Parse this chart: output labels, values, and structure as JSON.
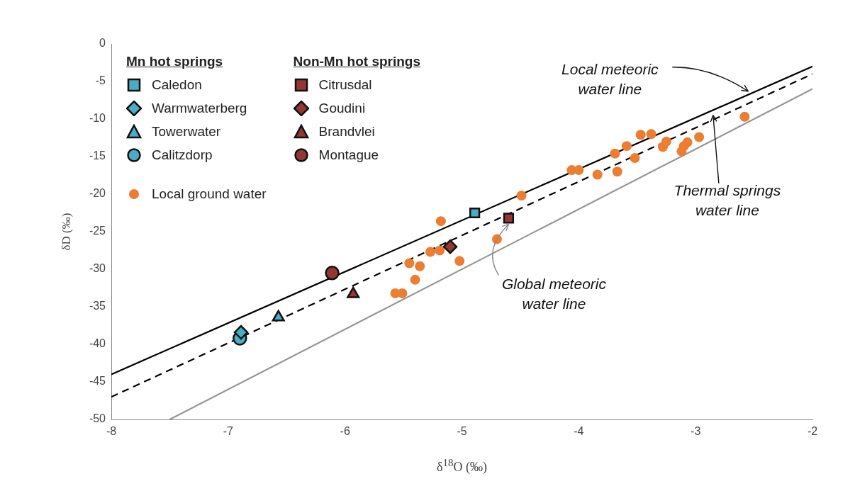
{
  "chart_data": {
    "type": "scatter",
    "xlabel": "δ$^{18}$O (‰)",
    "ylabel": "δD (‰)",
    "xlim": [
      -8,
      -2
    ],
    "xticks": [
      -8,
      -7,
      -6,
      -5,
      -4,
      -3,
      -2
    ],
    "ylim": [
      -50,
      0
    ],
    "yticks": [
      -50,
      -45,
      -40,
      -35,
      -30,
      -25,
      -20,
      -15,
      -10,
      -5,
      0
    ],
    "grid": false,
    "legend": "top left",
    "series": [
      {
        "name": "Caledon",
        "color": "#4bacc6",
        "marker": "square",
        "x": [
          -4.89
        ],
        "values": [
          -22.5
        ]
      },
      {
        "name": "Warmwaterberg",
        "color": "#4bacc6",
        "marker": "diamond",
        "x": [
          -6.89
        ],
        "values": [
          -38.4
        ]
      },
      {
        "name": "Towerwater",
        "color": "#4bacc6",
        "marker": "triangle",
        "x": [
          -6.57
        ],
        "values": [
          -36.4
        ]
      },
      {
        "name": "Calitzdorp",
        "color": "#4bacc6",
        "marker": "circle",
        "x": [
          -6.9
        ],
        "values": [
          -39.2
        ]
      },
      {
        "name": "Citrusdal",
        "color": "#943634",
        "marker": "square",
        "x": [
          -4.6
        ],
        "values": [
          -23.2
        ]
      },
      {
        "name": "Goudini",
        "color": "#943634",
        "marker": "diamond",
        "x": [
          -5.1
        ],
        "values": [
          -27.0
        ]
      },
      {
        "name": "Brandvlei",
        "color": "#943634",
        "marker": "triangle",
        "x": [
          -5.93
        ],
        "values": [
          -33.3
        ]
      },
      {
        "name": "Montague",
        "color": "#943634",
        "marker": "circle",
        "x": [
          -6.11
        ],
        "values": [
          -30.5
        ]
      },
      {
        "name": "Local ground water",
        "color": "#ed7d31",
        "marker": "circle",
        "x": [
          -2.58,
          -2.97,
          -3.07,
          -3.1,
          -3.12,
          -3.28,
          -3.25,
          -3.52,
          -3.47,
          -3.38,
          -3.59,
          -3.69,
          -3.67,
          -3.84,
          -4.06,
          -4.0,
          -4.49,
          -4.7,
          -5.18,
          -5.02,
          -5.19,
          -5.27,
          -5.45,
          -5.36,
          -5.4,
          -5.57,
          -5.51
        ],
        "values": [
          -9.7,
          -12.4,
          -13.1,
          -13.6,
          -14.3,
          -13.7,
          -13.0,
          -15.2,
          -12.1,
          -12.0,
          -13.6,
          -14.6,
          -17.0,
          -17.4,
          -16.8,
          -16.8,
          -20.2,
          -26.0,
          -23.6,
          -28.9,
          -27.5,
          -27.7,
          -29.2,
          -29.6,
          -31.4,
          -33.2,
          -33.2
        ]
      },
      {
        "type": "line",
        "color": "#000000",
        "marker": "none",
        "line_style": "solid",
        "x": [
          -8,
          -2
        ],
        "values": [
          -44,
          -3
        ]
      },
      {
        "type": "line",
        "color": "#000000",
        "marker": "none",
        "line_style": "dashed",
        "x": [
          -8,
          -2
        ],
        "values": [
          -47,
          -4
        ]
      },
      {
        "type": "line",
        "color": "#969696",
        "marker": "none",
        "line_style": "solid",
        "x": [
          -7.5,
          -2
        ],
        "values": [
          -50,
          -6
        ]
      }
    ],
    "annotations": [
      "Mn hot springs",
      "Non-Mn hot springs",
      {
        "text": "Local meteoric\nwater line",
        "x": -2.55,
        "y": -6.3
      },
      {
        "text": "Thermal springs\nwater line",
        "x": -2.85,
        "y": -9.5
      },
      {
        "text": "Global meteoric\nwater line",
        "x": -4.6,
        "y": -24
      }
    ]
  }
}
